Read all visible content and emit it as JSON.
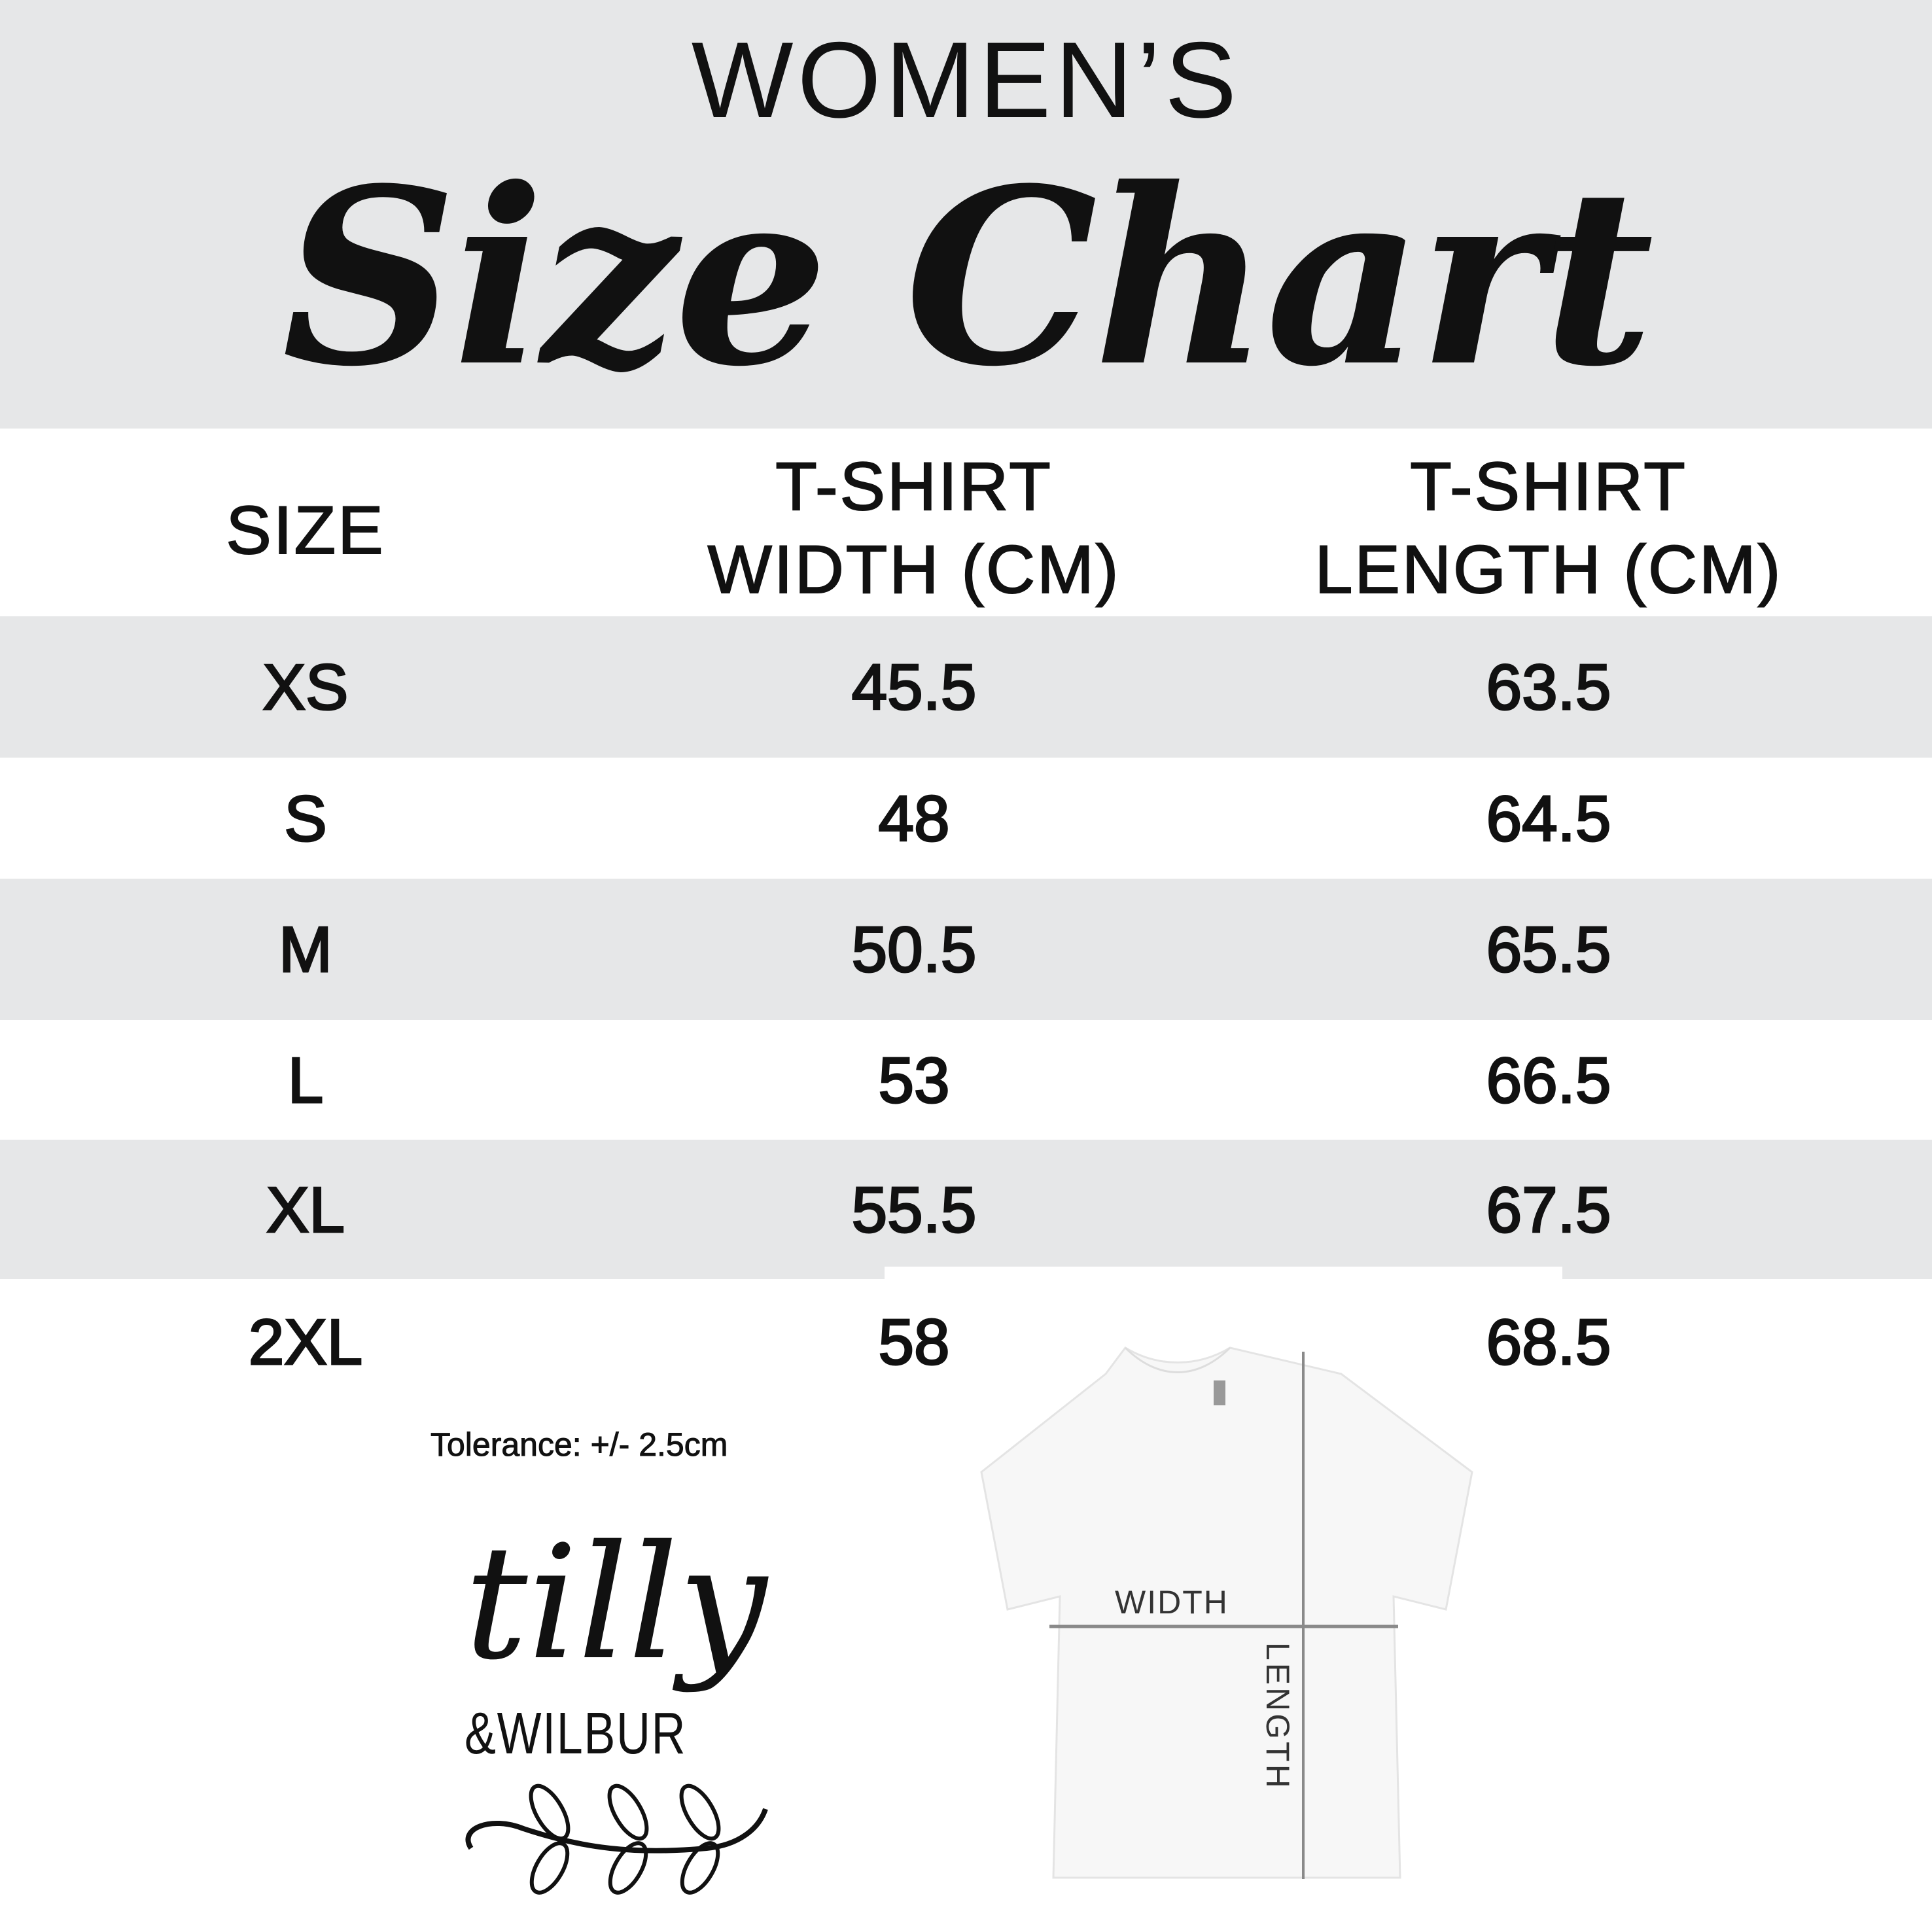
{
  "header": {
    "subtitle": "WOMEN’S",
    "title": "Size Chart"
  },
  "table": {
    "columns": [
      "SIZE",
      "T-SHIRT\nWIDTH (CM)",
      "T-SHIRT\nLENGTH (CM)"
    ],
    "columns_lines": [
      [
        "SIZE"
      ],
      [
        "T-SHIRT",
        "WIDTH (CM)"
      ],
      [
        "T-SHIRT",
        "LENGTH (CM)"
      ]
    ],
    "rows": [
      {
        "size": "XS",
        "width": "45.5",
        "length": "63.5"
      },
      {
        "size": "S",
        "width": "48",
        "length": "64.5"
      },
      {
        "size": "M",
        "width": "50.5",
        "length": "65.5"
      },
      {
        "size": "L",
        "width": "53",
        "length": "66.5"
      },
      {
        "size": "XL",
        "width": "55.5",
        "length": "67.5"
      },
      {
        "size": "2XL",
        "width": "58",
        "length": "68.5"
      }
    ]
  },
  "tolerance": "Tolerance: +/- 2.5cm",
  "diagram": {
    "width_label": "WIDTH",
    "length_label": "LENGTH"
  },
  "logo": {
    "line1": "tilly",
    "line2": "&WILBUR"
  },
  "colors": {
    "band_gray": "#e6e7e8",
    "text": "#111111",
    "measure_line": "#8a8a8a"
  }
}
